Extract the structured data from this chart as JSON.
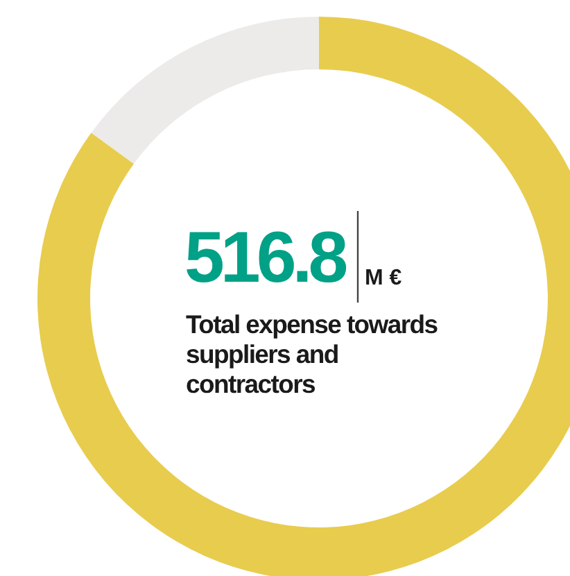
{
  "chart_data": {
    "type": "donut",
    "title": "516.8",
    "subtitle": "M €",
    "annotations": [
      "Total expense towards suppliers and contractors"
    ],
    "categories": [
      null,
      null
    ],
    "values": [
      85,
      15
    ],
    "colors": [
      "#e8cc4e",
      "#ecebe9"
    ]
  }
}
